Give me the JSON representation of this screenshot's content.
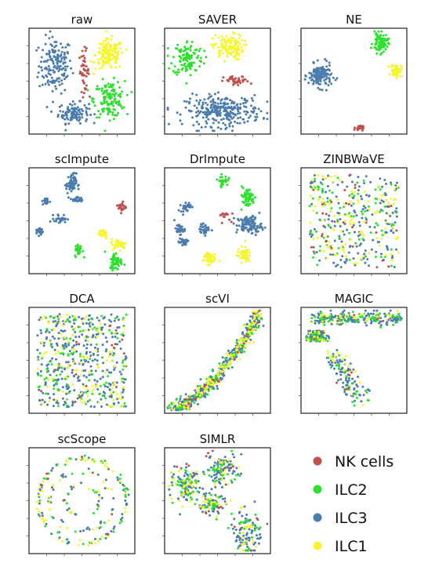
{
  "legend": [
    {
      "label": "NK cells",
      "color": "#c0504d"
    },
    {
      "label": "ILC2",
      "color": "#2ee02e"
    },
    {
      "label": "ILC3",
      "color": "#4a7cad"
    },
    {
      "label": "ILC1",
      "color": "#f5f533"
    }
  ],
  "chart_data": [
    {
      "type": "scatter",
      "title": "raw",
      "xlabel": "",
      "ylabel": "",
      "ylim": [
        0,
        1
      ],
      "legend": "none",
      "clusters": [
        {
          "series": "ILC3",
          "center": [
            0.25,
            0.65
          ],
          "spread": [
            0.13,
            0.22
          ],
          "n": 160
        },
        {
          "series": "ILC3",
          "center": [
            0.42,
            0.2
          ],
          "spread": [
            0.12,
            0.08
          ],
          "n": 110
        },
        {
          "series": "NK cells",
          "center": [
            0.52,
            0.6
          ],
          "spread": [
            0.04,
            0.16
          ],
          "n": 45
        },
        {
          "series": "ILC1",
          "center": [
            0.76,
            0.75
          ],
          "spread": [
            0.11,
            0.12
          ],
          "n": 150
        },
        {
          "series": "ILC2",
          "center": [
            0.76,
            0.33
          ],
          "spread": [
            0.12,
            0.14
          ],
          "n": 140
        }
      ]
    },
    {
      "type": "scatter",
      "title": "SAVER",
      "xlabel": "",
      "ylabel": "",
      "ylim": [
        0,
        1
      ],
      "legend": "none",
      "clusters": [
        {
          "series": "ILC2",
          "center": [
            0.22,
            0.72
          ],
          "spread": [
            0.12,
            0.14
          ],
          "n": 120
        },
        {
          "series": "ILC1",
          "center": [
            0.6,
            0.82
          ],
          "spread": [
            0.12,
            0.1
          ],
          "n": 130
        },
        {
          "series": "NK cells",
          "center": [
            0.68,
            0.5
          ],
          "spread": [
            0.1,
            0.04
          ],
          "n": 40
        },
        {
          "series": "ILC3",
          "center": [
            0.55,
            0.22
          ],
          "spread": [
            0.3,
            0.12
          ],
          "n": 280
        }
      ]
    },
    {
      "type": "scatter",
      "title": "NE",
      "xlabel": "",
      "ylabel": "",
      "ylim": [
        0,
        1
      ],
      "legend": "none",
      "clusters": [
        {
          "series": "ILC3",
          "center": [
            0.18,
            0.55
          ],
          "spread": [
            0.09,
            0.09
          ],
          "n": 150
        },
        {
          "series": "ILC2",
          "center": [
            0.75,
            0.86
          ],
          "spread": [
            0.06,
            0.08
          ],
          "n": 80
        },
        {
          "series": "ILC1",
          "center": [
            0.9,
            0.6
          ],
          "spread": [
            0.04,
            0.05
          ],
          "n": 70
        },
        {
          "series": "NK cells",
          "center": [
            0.55,
            0.06
          ],
          "spread": [
            0.03,
            0.02
          ],
          "n": 25
        }
      ]
    },
    {
      "type": "scatter",
      "title": "scImpute",
      "xlabel": "",
      "ylabel": "",
      "ylim": [
        0,
        1
      ],
      "legend": "none",
      "clusters": [
        {
          "series": "ILC3",
          "center": [
            0.4,
            0.85
          ],
          "spread": [
            0.04,
            0.08
          ],
          "n": 60
        },
        {
          "series": "ILC3",
          "center": [
            0.45,
            0.7
          ],
          "spread": [
            0.05,
            0.02
          ],
          "n": 25
        },
        {
          "series": "ILC3",
          "center": [
            0.16,
            0.68
          ],
          "spread": [
            0.03,
            0.03
          ],
          "n": 25
        },
        {
          "series": "ILC3",
          "center": [
            0.3,
            0.52
          ],
          "spread": [
            0.05,
            0.03
          ],
          "n": 30
        },
        {
          "series": "ILC3",
          "center": [
            0.1,
            0.4
          ],
          "spread": [
            0.03,
            0.03
          ],
          "n": 25
        },
        {
          "series": "NK cells",
          "center": [
            0.88,
            0.63
          ],
          "spread": [
            0.03,
            0.04
          ],
          "n": 25
        },
        {
          "series": "ILC1",
          "center": [
            0.7,
            0.38
          ],
          "spread": [
            0.04,
            0.04
          ],
          "n": 30
        },
        {
          "series": "ILC1",
          "center": [
            0.85,
            0.28
          ],
          "spread": [
            0.06,
            0.04
          ],
          "n": 45
        },
        {
          "series": "ILC2",
          "center": [
            0.47,
            0.22
          ],
          "spread": [
            0.03,
            0.05
          ],
          "n": 35
        },
        {
          "series": "ILC2",
          "center": [
            0.82,
            0.12
          ],
          "spread": [
            0.05,
            0.07
          ],
          "n": 60
        }
      ]
    },
    {
      "type": "scatter",
      "title": "DrImpute",
      "xlabel": "",
      "ylabel": "",
      "ylim": [
        0,
        1
      ],
      "legend": "none",
      "clusters": [
        {
          "series": "ILC2",
          "center": [
            0.55,
            0.88
          ],
          "spread": [
            0.04,
            0.04
          ],
          "n": 30
        },
        {
          "series": "ILC2",
          "center": [
            0.78,
            0.72
          ],
          "spread": [
            0.06,
            0.08
          ],
          "n": 60
        },
        {
          "series": "ILC3",
          "center": [
            0.2,
            0.63
          ],
          "spread": [
            0.04,
            0.04
          ],
          "n": 30
        },
        {
          "series": "ILC3",
          "center": [
            0.8,
            0.46
          ],
          "spread": [
            0.1,
            0.07
          ],
          "n": 110
        },
        {
          "series": "ILC3",
          "center": [
            0.14,
            0.42
          ],
          "spread": [
            0.04,
            0.04
          ],
          "n": 30
        },
        {
          "series": "ILC3",
          "center": [
            0.38,
            0.42
          ],
          "spread": [
            0.04,
            0.04
          ],
          "n": 30
        },
        {
          "series": "ILC3",
          "center": [
            0.18,
            0.3
          ],
          "spread": [
            0.04,
            0.04
          ],
          "n": 30
        },
        {
          "series": "NK cells",
          "center": [
            0.55,
            0.55
          ],
          "spread": [
            0.06,
            0.04
          ],
          "n": 15
        },
        {
          "series": "ILC1",
          "center": [
            0.42,
            0.15
          ],
          "spread": [
            0.05,
            0.05
          ],
          "n": 50
        },
        {
          "series": "ILC1",
          "center": [
            0.75,
            0.18
          ],
          "spread": [
            0.05,
            0.06
          ],
          "n": 55
        }
      ]
    },
    {
      "type": "scatter",
      "title": "ZINBWaVE",
      "xlabel": "",
      "ylabel": "",
      "ylim": [
        0,
        1
      ],
      "legend": "none",
      "clusters": [
        {
          "series": "ILC3",
          "center": [
            0.5,
            0.5
          ],
          "spread": [
            0.26,
            0.26
          ],
          "n": 170
        },
        {
          "series": "ILC2",
          "center": [
            0.5,
            0.5
          ],
          "spread": [
            0.26,
            0.26
          ],
          "n": 90
        },
        {
          "series": "ILC1",
          "center": [
            0.5,
            0.5
          ],
          "spread": [
            0.26,
            0.26
          ],
          "n": 110
        },
        {
          "series": "NK cells",
          "center": [
            0.5,
            0.5
          ],
          "spread": [
            0.26,
            0.26
          ],
          "n": 30
        }
      ]
    },
    {
      "type": "scatter",
      "title": "DCA",
      "xlabel": "",
      "ylabel": "",
      "ylim": [
        0,
        1
      ],
      "legend": "none",
      "clusters": [
        {
          "series": "ILC3",
          "center": [
            0.5,
            0.55
          ],
          "spread": [
            0.25,
            0.25
          ],
          "n": 320
        },
        {
          "series": "ILC2",
          "center": [
            0.45,
            0.5
          ],
          "spread": [
            0.25,
            0.25
          ],
          "n": 110
        },
        {
          "series": "ILC1",
          "center": [
            0.5,
            0.5
          ],
          "spread": [
            0.25,
            0.22
          ],
          "n": 110
        },
        {
          "series": "NK cells",
          "center": [
            0.5,
            0.8
          ],
          "spread": [
            0.15,
            0.1
          ],
          "n": 15
        }
      ]
    },
    {
      "type": "scatter",
      "title": "scVI",
      "xlabel": "",
      "ylabel": "",
      "ylim": [
        0,
        1
      ],
      "legend": "none",
      "clusters": [
        {
          "series": "ILC3",
          "center": [
            0.6,
            0.45
          ],
          "spread": [
            0.08,
            0.06
          ],
          "n": 320
        },
        {
          "series": "ILC2",
          "center": [
            0.6,
            0.45
          ],
          "spread": [
            0.08,
            0.06
          ],
          "n": 110
        },
        {
          "series": "ILC1",
          "center": [
            0.6,
            0.45
          ],
          "spread": [
            0.08,
            0.06
          ],
          "n": 140
        },
        {
          "series": "NK cells",
          "center": [
            0.6,
            0.45
          ],
          "spread": [
            0.08,
            0.06
          ],
          "n": 20
        }
      ]
    },
    {
      "type": "scatter",
      "title": "MAGIC",
      "xlabel": "",
      "ylabel": "",
      "ylim": [
        0,
        1
      ],
      "legend": "none",
      "clusters": [
        {
          "series": "ILC3",
          "center": [
            0.5,
            0.5
          ],
          "spread": [
            0.05,
            0.05
          ],
          "n": 300
        },
        {
          "series": "ILC2",
          "center": [
            0.5,
            0.5
          ],
          "spread": [
            0.05,
            0.05
          ],
          "n": 110
        },
        {
          "series": "ILC1",
          "center": [
            0.5,
            0.5
          ],
          "spread": [
            0.05,
            0.05
          ],
          "n": 60
        },
        {
          "series": "NK cells",
          "center": [
            0.5,
            0.5
          ],
          "spread": [
            0.05,
            0.05
          ],
          "n": 15
        }
      ]
    },
    {
      "type": "scatter",
      "title": "scScope",
      "xlabel": "",
      "ylabel": "",
      "ylim": [
        0,
        1
      ],
      "legend": "none",
      "clusters": [
        {
          "series": "ILC3",
          "center": [
            0.5,
            0.5
          ],
          "spread": [
            0.05,
            0.05
          ],
          "n": 90
        },
        {
          "series": "ILC2",
          "center": [
            0.5,
            0.5
          ],
          "spread": [
            0.05,
            0.05
          ],
          "n": 50
        },
        {
          "series": "ILC1",
          "center": [
            0.5,
            0.5
          ],
          "spread": [
            0.05,
            0.05
          ],
          "n": 60
        },
        {
          "series": "NK cells",
          "center": [
            0.5,
            0.5
          ],
          "spread": [
            0.05,
            0.05
          ],
          "n": 10
        }
      ]
    },
    {
      "type": "scatter",
      "title": "SIMLR",
      "xlabel": "",
      "ylabel": "",
      "ylim": [
        0,
        1
      ],
      "legend": "none",
      "clusters": [
        {
          "series": "ILC3",
          "center": [
            0.5,
            0.5
          ],
          "spread": [
            0.05,
            0.05
          ],
          "n": 260
        },
        {
          "series": "ILC2",
          "center": [
            0.5,
            0.5
          ],
          "spread": [
            0.05,
            0.05
          ],
          "n": 110
        },
        {
          "series": "ILC1",
          "center": [
            0.5,
            0.5
          ],
          "spread": [
            0.05,
            0.05
          ],
          "n": 80
        },
        {
          "series": "NK cells",
          "center": [
            0.5,
            0.5
          ],
          "spread": [
            0.05,
            0.05
          ],
          "n": 20
        }
      ]
    }
  ]
}
